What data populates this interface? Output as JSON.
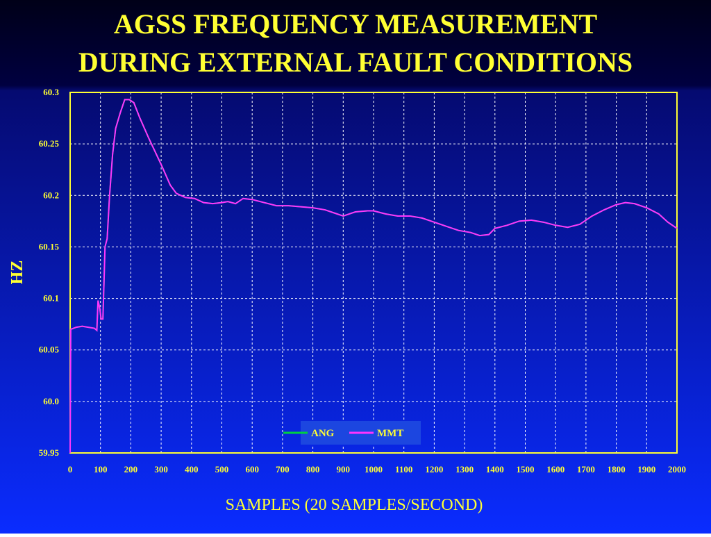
{
  "chart_data": {
    "type": "line",
    "title": "AGSS FREQUENCY MEASUREMENT",
    "subtitle": "DURING EXTERNAL FAULT CONDITIONS",
    "x_label": "SAMPLES (20 SAMPLES/SECOND)",
    "y_label": "HZ",
    "x": [
      0,
      2,
      20,
      40,
      60,
      80,
      88,
      92,
      98,
      102,
      108,
      115,
      122,
      130,
      140,
      150,
      165,
      180,
      195,
      210,
      230,
      260,
      300,
      330,
      350,
      380,
      410,
      440,
      470,
      500,
      520,
      545,
      570,
      600,
      640,
      680,
      720,
      760,
      800,
      840,
      870,
      900,
      940,
      980,
      1000,
      1040,
      1080,
      1120,
      1160,
      1200,
      1240,
      1280,
      1320,
      1350,
      1380,
      1400,
      1440,
      1480,
      1520,
      1560,
      1600,
      1640,
      1680,
      1720,
      1760,
      1800,
      1830,
      1860,
      1900,
      1940,
      1970,
      2000
    ],
    "series": [
      {
        "name": "ANG",
        "color": "#00d040",
        "values": [
          59.95,
          60.07,
          60.072,
          60.073,
          60.072,
          60.071,
          60.069,
          60.098,
          60.09,
          60.08,
          60.08,
          60.15,
          60.158,
          60.2,
          60.24,
          60.265,
          60.28,
          60.293,
          60.293,
          60.29,
          60.275,
          60.255,
          60.23,
          60.21,
          60.202,
          60.198,
          60.197,
          60.193,
          60.192,
          60.193,
          60.194,
          60.192,
          60.197,
          60.196,
          60.193,
          60.19,
          60.19,
          60.189,
          60.188,
          60.186,
          60.183,
          60.18,
          60.184,
          60.185,
          60.185,
          60.182,
          60.18,
          60.18,
          60.178,
          60.174,
          60.17,
          60.166,
          60.164,
          60.161,
          60.162,
          60.168,
          60.171,
          60.175,
          60.176,
          60.174,
          60.171,
          60.169,
          60.172,
          60.18,
          60.186,
          60.191,
          60.193,
          60.192,
          60.188,
          60.182,
          60.174,
          60.168
        ]
      },
      {
        "name": "MMT",
        "color": "#ff33ff",
        "values": [
          59.95,
          60.07,
          60.072,
          60.073,
          60.072,
          60.071,
          60.069,
          60.098,
          60.09,
          60.08,
          60.08,
          60.15,
          60.158,
          60.2,
          60.24,
          60.265,
          60.28,
          60.293,
          60.293,
          60.29,
          60.275,
          60.255,
          60.23,
          60.21,
          60.202,
          60.198,
          60.197,
          60.193,
          60.192,
          60.193,
          60.194,
          60.192,
          60.197,
          60.196,
          60.193,
          60.19,
          60.19,
          60.189,
          60.188,
          60.186,
          60.183,
          60.18,
          60.184,
          60.185,
          60.185,
          60.182,
          60.18,
          60.18,
          60.178,
          60.174,
          60.17,
          60.166,
          60.164,
          60.161,
          60.162,
          60.168,
          60.171,
          60.175,
          60.176,
          60.174,
          60.171,
          60.169,
          60.172,
          60.18,
          60.186,
          60.191,
          60.193,
          60.192,
          60.188,
          60.182,
          60.174,
          60.168
        ]
      }
    ],
    "xlim": [
      0,
      2000
    ],
    "xticks": [
      0,
      100,
      200,
      300,
      400,
      500,
      600,
      700,
      800,
      900,
      1000,
      1100,
      1200,
      1300,
      1400,
      1500,
      1600,
      1700,
      1800,
      1900,
      2000
    ],
    "ylim": [
      59.95,
      60.3
    ],
    "yticks": [
      59.95,
      {
        "value": 60,
        "label": "60.0"
      },
      60.05,
      60.1,
      60.15,
      60.2,
      60.25,
      60.3
    ],
    "grid": true,
    "legend": "bottom"
  }
}
